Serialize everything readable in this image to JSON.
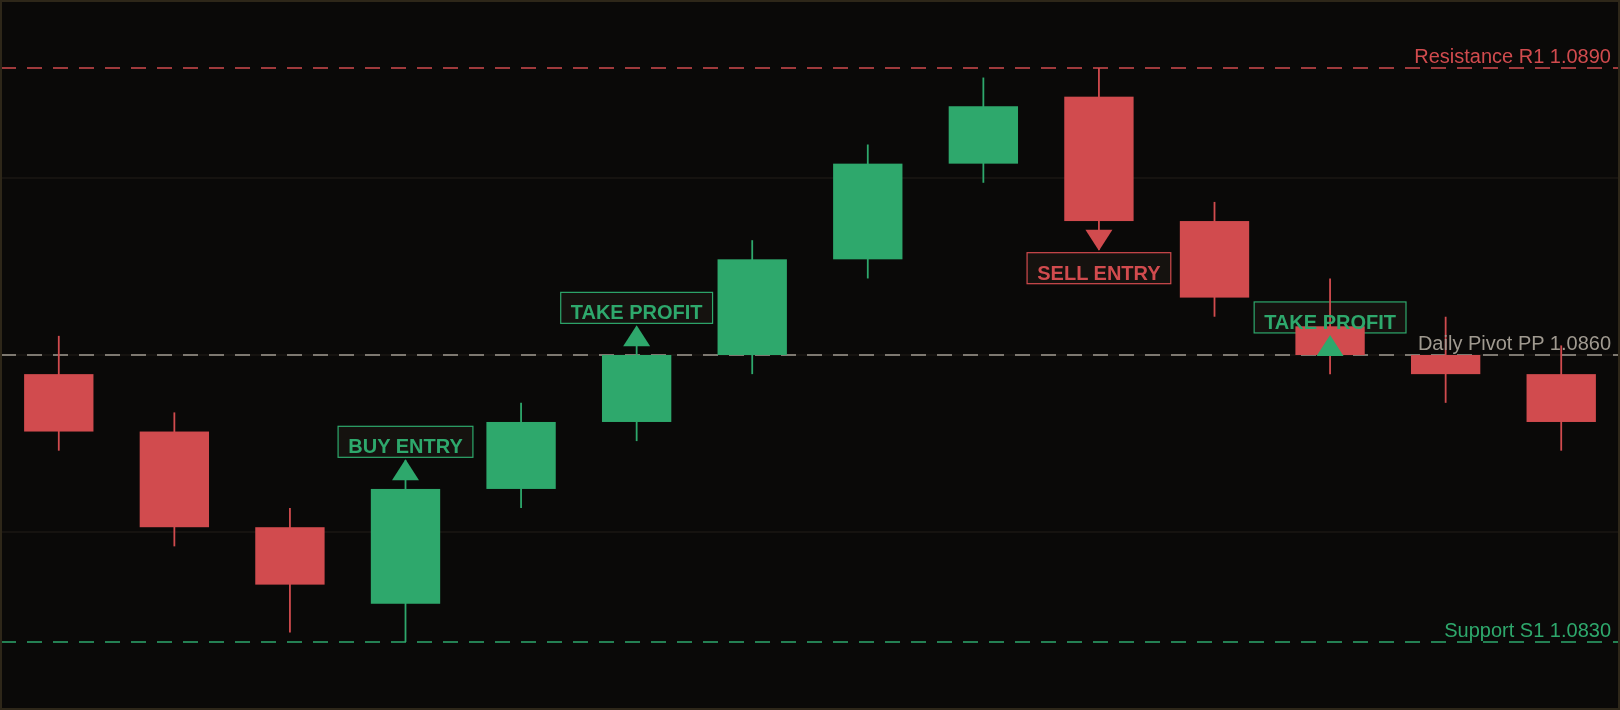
{
  "chart_data": {
    "type": "candlestick",
    "categories": [
      null,
      null,
      null,
      null,
      null,
      null,
      null,
      null,
      null,
      null,
      null,
      null,
      null,
      null
    ],
    "ohlc": [
      [
        1.0858,
        1.0862,
        1.085,
        1.0852
      ],
      [
        1.0852,
        1.0854,
        1.084,
        1.0842
      ],
      [
        1.0842,
        1.0844,
        1.0831,
        1.0836
      ],
      [
        1.0834,
        1.0849,
        1.083,
        1.0846
      ],
      [
        1.0846,
        1.0855,
        1.0844,
        1.0853
      ],
      [
        1.0853,
        1.0861,
        1.0851,
        1.086
      ],
      [
        1.086,
        1.0872,
        1.0858,
        1.087
      ],
      [
        1.087,
        1.0882,
        1.0868,
        1.088
      ],
      [
        1.088,
        1.0889,
        1.0878,
        1.0886
      ],
      [
        1.0887,
        1.089,
        1.0871,
        1.0874
      ],
      [
        1.0874,
        1.0876,
        1.0864,
        1.0866
      ],
      [
        1.0863,
        1.0868,
        1.0858,
        1.086
      ],
      [
        1.086,
        1.0864,
        1.0855,
        1.0858
      ],
      [
        1.0858,
        1.0861,
        1.085,
        1.0853
      ]
    ],
    "colors": [
      "#d14b4e",
      "#d14b4e",
      "#d14b4e",
      "#2ea86c",
      "#2ea86c",
      "#2ea86c",
      "#2ea86c",
      "#2ea86c",
      "#2ea86c",
      "#d14b4e",
      "#d14b4e",
      "#d14b4e",
      "#d14b4e",
      "#d14b4e"
    ],
    "series": [
      {
        "type": "scatter",
        "color": "#2ea86c",
        "marker": "triangle",
        "values": [
          null,
          null,
          null,
          1.0848,
          null,
          1.0862,
          null,
          null,
          null,
          null,
          null,
          1.0861,
          null,
          null
        ]
      },
      {
        "type": "scatter",
        "color": "#d14b4e",
        "marker": "triangle-down",
        "values": [
          null,
          null,
          null,
          null,
          null,
          null,
          null,
          null,
          null,
          1.0872,
          null,
          null,
          null,
          null
        ]
      }
    ],
    "annotations": [
      {
        "text": "BUY ENTRY",
        "y": 1.0848
      },
      {
        "text": "TAKE PROFIT",
        "y": 1.0862
      },
      {
        "text": "SELL ENTRY",
        "y": 1.0872
      },
      {
        "text": "TAKE PROFIT",
        "y": 1.0861
      }
    ],
    "ref_lines": [
      {
        "axis": "y",
        "value": 1.089,
        "label": "Resistance R1 1.0890",
        "color": "#d14b4e",
        "line_style": "dashed"
      },
      {
        "axis": "y",
        "value": 1.086,
        "label": "Daily Pivot PP 1.0860",
        "color": "#a09a90",
        "line_style": "dashed"
      },
      {
        "axis": "y",
        "value": 1.083,
        "label": "Support S1 1.0830",
        "color": "#2ea86c",
        "line_style": "dashed"
      }
    ],
    "ylim": [
      1.0823,
      1.0897
    ],
    "yticks": [
      1.08415,
      1.086,
      1.08785
    ],
    "grid": "y",
    "tick_labels": false
  }
}
